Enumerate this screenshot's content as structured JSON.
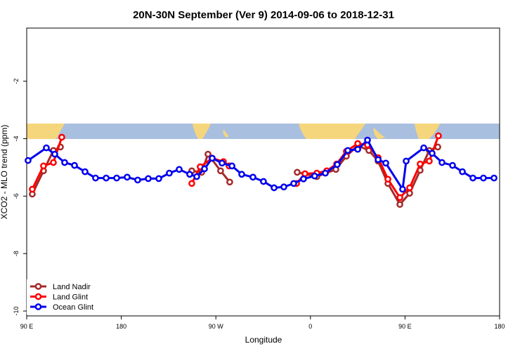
{
  "chart_data": {
    "type": "line",
    "title": "20N-30N September (Ver 9)   2014-09-06 to 2018-12-31",
    "x_label": "Longitude",
    "y_label": "XCO2 - MLO trend (ppm)",
    "xlim": [
      90,
      540
    ],
    "xticks": [
      {
        "value": 90,
        "label": "90 E"
      },
      {
        "value": 180,
        "label": "180"
      },
      {
        "value": 270,
        "label": "90 W"
      },
      {
        "value": 360,
        "label": "0"
      },
      {
        "value": 450,
        "label": "90 E"
      },
      {
        "value": 540,
        "label": "180"
      }
    ],
    "ylim": [
      -10.17,
      -0.15
    ],
    "yticks": [
      -2,
      -4,
      -6,
      -8,
      -10
    ],
    "legend": "bottom-left",
    "series": [
      {
        "name": "Land Nadir",
        "color": "#a52a2a",
        "x": [
          95.3,
          106.0,
          115.4,
          122.1,
          null,
          247.1,
          256.5,
          262.5,
          274.5,
          283.2,
          null,
          347.4,
          366.1,
          384.2,
          394.2,
          405.0,
          415.6,
          424.4,
          433.7,
          445.1,
          454.4,
          464.4,
          473.1,
          481.2
        ],
        "values": [
          -5.93,
          -5.12,
          -4.41,
          -4.29,
          null,
          -5.12,
          -5.17,
          -4.54,
          -5.12,
          -5.51,
          null,
          -5.17,
          -5.32,
          -5.07,
          -4.61,
          -4.24,
          -4.41,
          -4.78,
          -5.56,
          -6.29,
          -5.9,
          -5.1,
          -4.41,
          -4.29
        ]
      },
      {
        "name": "Land Glint",
        "color": "#ff0000",
        "x": [
          95.3,
          106.0,
          115.4,
          123.4,
          null,
          247.1,
          255.1,
          266.5,
          277.2,
          282.6,
          null,
          346.8,
          354.8,
          366.1,
          375.5,
          384.9,
          394.2,
          405.0,
          414.3,
          424.4,
          433.7,
          445.1,
          454.4,
          464.4,
          473.1,
          481.8
        ],
        "values": [
          -5.76,
          -4.95,
          -4.83,
          -3.95,
          null,
          -5.56,
          -4.98,
          -4.68,
          -4.8,
          -4.95,
          null,
          -5.56,
          -5.22,
          -5.2,
          -5.12,
          -4.88,
          -4.44,
          -4.17,
          -4.22,
          -4.66,
          -5.41,
          -6.05,
          -5.71,
          -4.88,
          -4.78,
          -3.9
        ]
      },
      {
        "name": "Ocean Glint",
        "color": "#0000ee",
        "x": [
          91.3,
          108.7,
          116.7,
          126.1,
          135.5,
          145.5,
          155.5,
          165.6,
          175.6,
          185.6,
          195.6,
          205.7,
          215.7,
          225.7,
          235.1,
          245.1,
          251.8,
          259.2,
          266.5,
          275.9,
          285.3,
          294.6,
          305.3,
          315.3,
          325.4,
          334.7,
          344.1,
          353.4,
          364.0,
          374.2,
          385.5,
          395.6,
          405.0,
          414.3,
          424.4,
          431.7,
          447.7,
          451.1,
          467.8,
          475.8,
          485.2,
          495.2,
          504.6,
          514.6,
          524.6,
          534.7
        ],
        "values": [
          -4.76,
          -4.32,
          -4.54,
          -4.83,
          -4.93,
          -5.15,
          -5.37,
          -5.37,
          -5.37,
          -5.34,
          -5.44,
          -5.39,
          -5.39,
          -5.2,
          -5.07,
          -5.24,
          -5.32,
          -5.05,
          -4.68,
          -4.85,
          -4.95,
          -5.24,
          -5.34,
          -5.49,
          -5.71,
          -5.68,
          -5.56,
          -5.4,
          -5.3,
          -5.2,
          -4.9,
          -4.41,
          -4.37,
          -4.05,
          -4.73,
          -4.85,
          -5.76,
          -4.78,
          -4.32,
          -4.51,
          -4.83,
          -4.93,
          -5.15,
          -5.37,
          -5.37,
          -5.37
        ]
      }
    ]
  }
}
